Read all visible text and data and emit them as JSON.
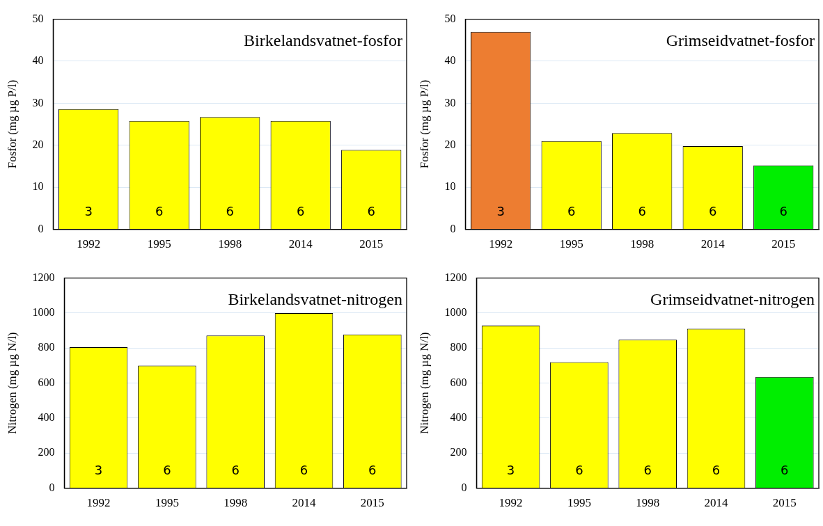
{
  "chart_data": [
    {
      "type": "bar",
      "title": "Birkelandsvatnet-fosfor",
      "ylabel": "Fosfor (mg µg P/l)",
      "categories": [
        "1992",
        "1995",
        "1998",
        "2014",
        "2015"
      ],
      "values": [
        28.6,
        25.8,
        26.7,
        25.8,
        18.9
      ],
      "colors": [
        "#ffff00",
        "#ffff00",
        "#ffff00",
        "#ffff00",
        "#ffff00"
      ],
      "ylim": [
        0,
        50
      ],
      "yticks": [
        0,
        10,
        20,
        30,
        40,
        50
      ],
      "grid": "y",
      "annotations": [
        "3",
        "6",
        "6",
        "6",
        "6"
      ]
    },
    {
      "type": "bar",
      "title": "Grimseidvatnet-fosfor",
      "ylabel": "Fosfor (mg µg P/l)",
      "categories": [
        "1992",
        "1995",
        "1998",
        "2014",
        "2015"
      ],
      "values": [
        47,
        21,
        22.9,
        19.8,
        15.2
      ],
      "colors": [
        "#ed7d31",
        "#ffff00",
        "#ffff00",
        "#ffff00",
        "#00ee00"
      ],
      "ylim": [
        0,
        50
      ],
      "yticks": [
        0,
        10,
        20,
        30,
        40,
        50
      ],
      "grid": "y",
      "annotations": [
        "3",
        "6",
        "6",
        "6",
        "6"
      ]
    },
    {
      "type": "bar",
      "title": "Birkelandsvatnet-nitrogen",
      "ylabel": "Nitrogen (mg µg N/l)",
      "categories": [
        "1992",
        "1995",
        "1998",
        "2014",
        "2015"
      ],
      "values": [
        805,
        700,
        872,
        1000,
        878
      ],
      "colors": [
        "#ffff00",
        "#ffff00",
        "#ffff00",
        "#ffff00",
        "#ffff00"
      ],
      "ylim": [
        0,
        1200
      ],
      "yticks": [
        0,
        200,
        400,
        600,
        800,
        1000,
        1200
      ],
      "grid": "y",
      "annotations": [
        "3",
        "6",
        "6",
        "6",
        "6"
      ]
    },
    {
      "type": "bar",
      "title": "Grimseidvatnet-nitrogen",
      "ylabel": "Nitrogen (mg µg N/l)",
      "categories": [
        "1992",
        "1995",
        "1998",
        "2014",
        "2015"
      ],
      "values": [
        928,
        720,
        848,
        910,
        635
      ],
      "colors": [
        "#ffff00",
        "#ffff00",
        "#ffff00",
        "#ffff00",
        "#00ee00"
      ],
      "ylim": [
        0,
        1200
      ],
      "yticks": [
        0,
        200,
        400,
        600,
        800,
        1000,
        1200
      ],
      "grid": "y",
      "annotations": [
        "3",
        "6",
        "6",
        "6",
        "6"
      ]
    }
  ]
}
